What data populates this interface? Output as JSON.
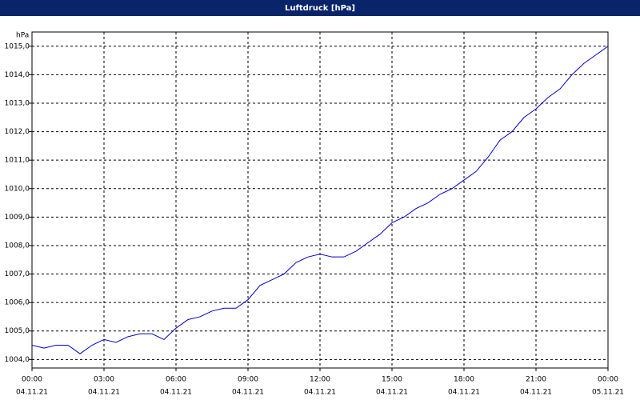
{
  "chart_data": {
    "type": "line",
    "title": "Luftdruck [hPa]",
    "y_unit": "hPa",
    "x": [
      0,
      0.5,
      1,
      1.5,
      2,
      2.5,
      3,
      3.5,
      4,
      4.5,
      5,
      5.5,
      6,
      6.5,
      7,
      7.5,
      8,
      8.5,
      9,
      9.5,
      10,
      10.5,
      11,
      11.5,
      12,
      12.5,
      13,
      13.5,
      14,
      14.5,
      15,
      15.5,
      16,
      16.5,
      17,
      17.5,
      18,
      18.5,
      19,
      19.5,
      20,
      20.5,
      21,
      21.5,
      22,
      22.5,
      23,
      23.5,
      24
    ],
    "series": [
      {
        "name": "Luftdruck",
        "color": "#0000cc",
        "values": [
          1004.5,
          1004.4,
          1004.5,
          1004.5,
          1004.2,
          1004.5,
          1004.7,
          1004.6,
          1004.8,
          1004.9,
          1004.9,
          1004.7,
          1005.1,
          1005.4,
          1005.5,
          1005.7,
          1005.8,
          1005.8,
          1006.1,
          1006.6,
          1006.8,
          1007.0,
          1007.4,
          1007.6,
          1007.7,
          1007.6,
          1007.6,
          1007.8,
          1008.1,
          1008.4,
          1008.8,
          1009.0,
          1009.3,
          1009.5,
          1009.8,
          1010.0,
          1010.3,
          1010.6,
          1011.1,
          1011.7,
          1012.0,
          1012.5,
          1012.8,
          1013.2,
          1013.5,
          1014.0,
          1014.4,
          1014.7,
          1015.0
        ]
      }
    ],
    "xlim": [
      0,
      24
    ],
    "xticks": [
      {
        "value": 0,
        "label": "00:00",
        "date": "04.11.21"
      },
      {
        "value": 3,
        "label": "03:00",
        "date": "04.11.21"
      },
      {
        "value": 6,
        "label": "06:00",
        "date": "04.11.21"
      },
      {
        "value": 9,
        "label": "09:00",
        "date": "04.11.21"
      },
      {
        "value": 12,
        "label": "12:00",
        "date": "04.11.21"
      },
      {
        "value": 15,
        "label": "15:00",
        "date": "04.11.21"
      },
      {
        "value": 18,
        "label": "18:00",
        "date": "04.11.21"
      },
      {
        "value": 21,
        "label": "21:00",
        "date": "04.11.21"
      },
      {
        "value": 24,
        "label": "00:00",
        "date": "05.11.21"
      }
    ],
    "ylim": [
      1003.7,
      1015.5
    ],
    "yticks": [
      {
        "value": 1004,
        "label": "1004,0"
      },
      {
        "value": 1005,
        "label": "1005,0"
      },
      {
        "value": 1006,
        "label": "1006,0"
      },
      {
        "value": 1007,
        "label": "1007,0"
      },
      {
        "value": 1008,
        "label": "1008,0"
      },
      {
        "value": 1009,
        "label": "1009,0"
      },
      {
        "value": 1010,
        "label": "1010,0"
      },
      {
        "value": 1011,
        "label": "1011,0"
      },
      {
        "value": 1012,
        "label": "1012,0"
      },
      {
        "value": 1013,
        "label": "1013,0"
      },
      {
        "value": 1014,
        "label": "1014,0"
      },
      {
        "value": 1015,
        "label": "1015,0"
      }
    ],
    "grid": true
  }
}
